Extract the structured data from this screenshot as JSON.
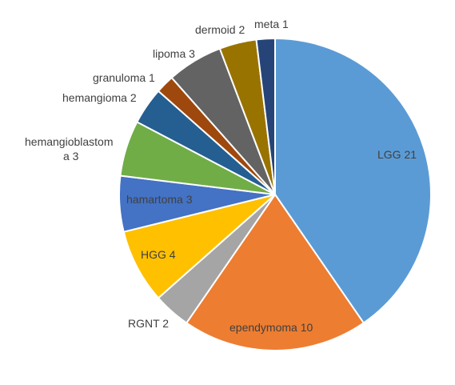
{
  "chart_data": {
    "type": "pie",
    "title": "",
    "start_angle_deg": 0,
    "direction": "clockwise",
    "slices": [
      {
        "name": "LGG",
        "value": 21,
        "label": "LGG 21",
        "color": "#5B9BD5"
      },
      {
        "name": "ependymoma",
        "value": 10,
        "label": "ependymoma 10",
        "color": "#ED7D31"
      },
      {
        "name": "RGNT",
        "value": 2,
        "label": "RGNT 2",
        "color": "#A5A5A5"
      },
      {
        "name": "HGG",
        "value": 4,
        "label": "HGG 4",
        "color": "#FFC000"
      },
      {
        "name": "hamartoma",
        "value": 3,
        "label": "hamartoma 3",
        "color": "#4472C4"
      },
      {
        "name": "hemangioblastoma",
        "value": 3,
        "label_lines": [
          "hemangioblastom",
          "a 3"
        ],
        "color": "#70AD47"
      },
      {
        "name": "hemangioma",
        "value": 2,
        "label": "hemangioma 2",
        "color": "#255E91"
      },
      {
        "name": "granuloma",
        "value": 1,
        "label": "granuloma 1",
        "color": "#9E480E"
      },
      {
        "name": "lipoma",
        "value": 3,
        "label": "lipoma 3",
        "color": "#636363"
      },
      {
        "name": "dermoid",
        "value": 2,
        "label": "dermoid 2",
        "color": "#997300"
      },
      {
        "name": "meta",
        "value": 1,
        "label": "meta 1",
        "color": "#264478"
      }
    ]
  }
}
